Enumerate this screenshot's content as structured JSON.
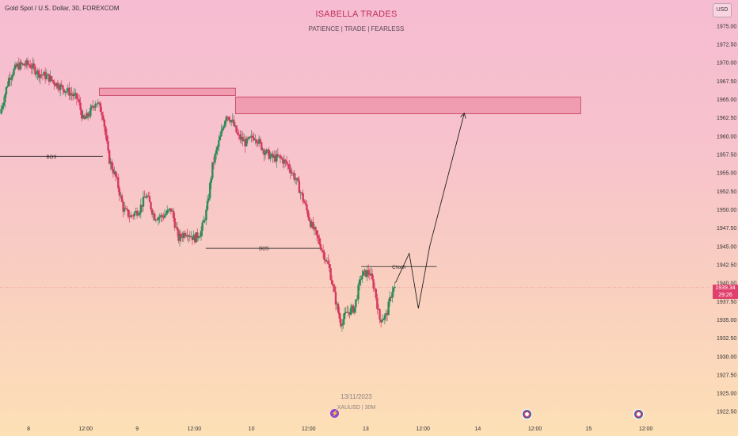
{
  "header": {
    "symbol_line": "Gold Spot / U.S. Dollar, 30, FOREXCOM",
    "currency": "USD"
  },
  "branding": {
    "title": "ISABELLA TRADES",
    "tagline": "PATIENCE  |  TRADE  |  FEARLESS"
  },
  "watermark": {
    "date": "13/11/2023",
    "symbol": "XAUUSD | 30M"
  },
  "price_label": {
    "price": "1939.34",
    "countdown": "29:26"
  },
  "colors": {
    "up": "#2e8b57",
    "down": "#d6395f",
    "zone_fill": "#e8728e",
    "zone_border": "#c23a5a",
    "accent": "#e0406b"
  },
  "events": [
    {
      "icon": "lightning-icon",
      "at": 29.3
    },
    {
      "icon": "us-flag-icon",
      "at": 46
    },
    {
      "icon": "us-flag-icon",
      "at": 55.8
    }
  ],
  "chart_data": {
    "type": "candlestick",
    "title": "Gold Spot / U.S. Dollar, 30, FOREXCOM",
    "ylim": [
      1921.5,
      1978.5
    ],
    "y_ticks": [
      "1975.00",
      "1972.50",
      "1970.00",
      "1967.50",
      "1965.00",
      "1962.50",
      "1960.00",
      "1957.50",
      "1955.00",
      "1952.50",
      "1950.00",
      "1947.50",
      "1945.00",
      "1942.50",
      "1940.00",
      "1937.50",
      "1935.00",
      "1932.50",
      "1930.00",
      "1927.50",
      "1925.00",
      "1922.50"
    ],
    "x_ticks": [
      {
        "label": "8",
        "at": 2.5
      },
      {
        "label": "12:00",
        "at": 7.5
      },
      {
        "label": "9",
        "at": 12
      },
      {
        "label": "12:00",
        "at": 17
      },
      {
        "label": "10",
        "at": 22
      },
      {
        "label": "12:00",
        "at": 27
      },
      {
        "label": "13",
        "at": 32
      },
      {
        "label": "12:00",
        "at": 37
      },
      {
        "label": "14",
        "at": 41.8
      },
      {
        "label": "12:00",
        "at": 46.8
      },
      {
        "label": "15",
        "at": 51.5
      },
      {
        "label": "12:00",
        "at": 56.5
      }
    ],
    "xlim": [
      0,
      62
    ],
    "close_series": [
      {
        "x": 0,
        "y": 1963
      },
      {
        "x": 0.8,
        "y": 1968
      },
      {
        "x": 1.5,
        "y": 1969.5
      },
      {
        "x": 2.5,
        "y": 1969.8
      },
      {
        "x": 3.4,
        "y": 1968.5
      },
      {
        "x": 4.2,
        "y": 1968
      },
      {
        "x": 5,
        "y": 1967
      },
      {
        "x": 6,
        "y": 1966
      },
      {
        "x": 6.8,
        "y": 1965
      },
      {
        "x": 7.3,
        "y": 1962
      },
      {
        "x": 7.8,
        "y": 1963
      },
      {
        "x": 8.4,
        "y": 1964.8
      },
      {
        "x": 9,
        "y": 1963
      },
      {
        "x": 9.5,
        "y": 1957
      },
      {
        "x": 10.2,
        "y": 1954
      },
      {
        "x": 10.8,
        "y": 1950
      },
      {
        "x": 11.4,
        "y": 1949
      },
      {
        "x": 12.2,
        "y": 1950
      },
      {
        "x": 12.8,
        "y": 1952
      },
      {
        "x": 13.5,
        "y": 1949
      },
      {
        "x": 14.2,
        "y": 1949
      },
      {
        "x": 15,
        "y": 1950
      },
      {
        "x": 15.6,
        "y": 1946
      },
      {
        "x": 16.3,
        "y": 1947
      },
      {
        "x": 17,
        "y": 1946
      },
      {
        "x": 17.6,
        "y": 1947
      },
      {
        "x": 18.1,
        "y": 1950
      },
      {
        "x": 18.6,
        "y": 1956
      },
      {
        "x": 19.3,
        "y": 1960
      },
      {
        "x": 19.8,
        "y": 1963
      },
      {
        "x": 20.3,
        "y": 1962
      },
      {
        "x": 20.8,
        "y": 1960
      },
      {
        "x": 21.5,
        "y": 1959
      },
      {
        "x": 22.3,
        "y": 1960
      },
      {
        "x": 23.1,
        "y": 1958
      },
      {
        "x": 23.8,
        "y": 1957
      },
      {
        "x": 24.5,
        "y": 1957
      },
      {
        "x": 25.2,
        "y": 1956
      },
      {
        "x": 25.9,
        "y": 1954
      },
      {
        "x": 26.6,
        "y": 1951
      },
      {
        "x": 27.2,
        "y": 1948
      },
      {
        "x": 27.8,
        "y": 1946
      },
      {
        "x": 28.3,
        "y": 1944
      },
      {
        "x": 28.8,
        "y": 1942
      },
      {
        "x": 29.3,
        "y": 1938
      },
      {
        "x": 29.8,
        "y": 1934.5
      },
      {
        "x": 30.4,
        "y": 1936
      },
      {
        "x": 31,
        "y": 1936.5
      },
      {
        "x": 31.6,
        "y": 1941
      },
      {
        "x": 32.3,
        "y": 1941.5
      },
      {
        "x": 32.8,
        "y": 1939
      },
      {
        "x": 33.2,
        "y": 1935
      },
      {
        "x": 33.8,
        "y": 1935.5
      },
      {
        "x": 34.3,
        "y": 1939
      },
      {
        "x": 34.6,
        "y": 1939.3
      }
    ],
    "series": [
      {
        "values": [
          1963,
          1968,
          1969.5,
          1969.8,
          1968.5,
          1968,
          1967,
          1966,
          1965,
          1962,
          1963,
          1964.8,
          1963,
          1957,
          1954,
          1950,
          1949,
          1950,
          1952,
          1949,
          1949,
          1950,
          1946,
          1947,
          1946,
          1947,
          1950,
          1956,
          1960,
          1963,
          1962,
          1960,
          1959,
          1960,
          1958,
          1957,
          1957,
          1956,
          1954,
          1951,
          1948,
          1946,
          1944,
          1942,
          1938,
          1934.5,
          1936,
          1936.5,
          1941,
          1941.5,
          1939,
          1935,
          1935.5,
          1939,
          1939.3
        ]
      }
    ],
    "current_price": 1939.34,
    "zones": [
      {
        "from_x": 8.7,
        "to_x": 20.6,
        "y_low": 1965.5,
        "y_high": 1966.5
      },
      {
        "from_x": 20.6,
        "to_x": 50.8,
        "y_low": 1963.0,
        "y_high": 1965.3
      }
    ],
    "levels": [
      {
        "label": "BOS",
        "from_x": 0,
        "to_x": 9,
        "y": 1957.2
      },
      {
        "label": "BOS",
        "from_x": 18,
        "to_x": 28.2,
        "y": 1944.7
      },
      {
        "label": "Choch",
        "from_x": 31.6,
        "to_x": 38.2,
        "y": 1942.2
      }
    ],
    "projection": [
      {
        "x": 34.6,
        "y": 1940
      },
      {
        "x": 35.8,
        "y": 1944
      },
      {
        "x": 36.6,
        "y": 1936.5
      },
      {
        "x": 37.6,
        "y": 1945
      },
      {
        "x": 40.6,
        "y": 1963
      }
    ]
  }
}
